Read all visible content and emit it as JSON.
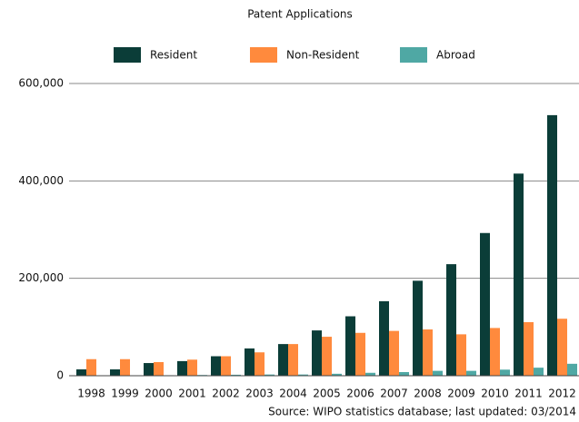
{
  "chart_data": {
    "type": "bar",
    "title": "Patent Applications",
    "categories": [
      "1998",
      "1999",
      "2000",
      "2001",
      "2002",
      "2003",
      "2004",
      "2005",
      "2006",
      "2007",
      "2008",
      "2009",
      "2010",
      "2011",
      "2012"
    ],
    "series": [
      {
        "name": "Resident",
        "color": "#0b3d38",
        "values": [
          13000,
          13000,
          26000,
          30000,
          40000,
          56000,
          65000,
          93000,
          122000,
          153000,
          195000,
          229000,
          293000,
          415000,
          535000
        ]
      },
      {
        "name": "Non-Resident",
        "color": "#ff8a3d",
        "values": [
          34000,
          34000,
          28000,
          33000,
          40000,
          48000,
          65000,
          80000,
          88000,
          92000,
          95000,
          85000,
          98000,
          110000,
          117000
        ]
      },
      {
        "name": "Abroad",
        "color": "#4fa8a4",
        "values": [
          500,
          500,
          1000,
          1500,
          2000,
          2500,
          2500,
          4000,
          6000,
          7500,
          10000,
          10000,
          12500,
          16500,
          24500
        ]
      }
    ],
    "ylim": [
      0,
      600000
    ],
    "yticks": [
      0,
      {
        "value": 200000,
        "label": "200,000"
      },
      {
        "value": 400000,
        "label": "400,000"
      },
      {
        "value": 600000,
        "label": "600,000"
      }
    ],
    "grid": true,
    "legend": "top",
    "annotations": [
      "Source: WIPO statistics database; last updated: 03/2014"
    ]
  }
}
